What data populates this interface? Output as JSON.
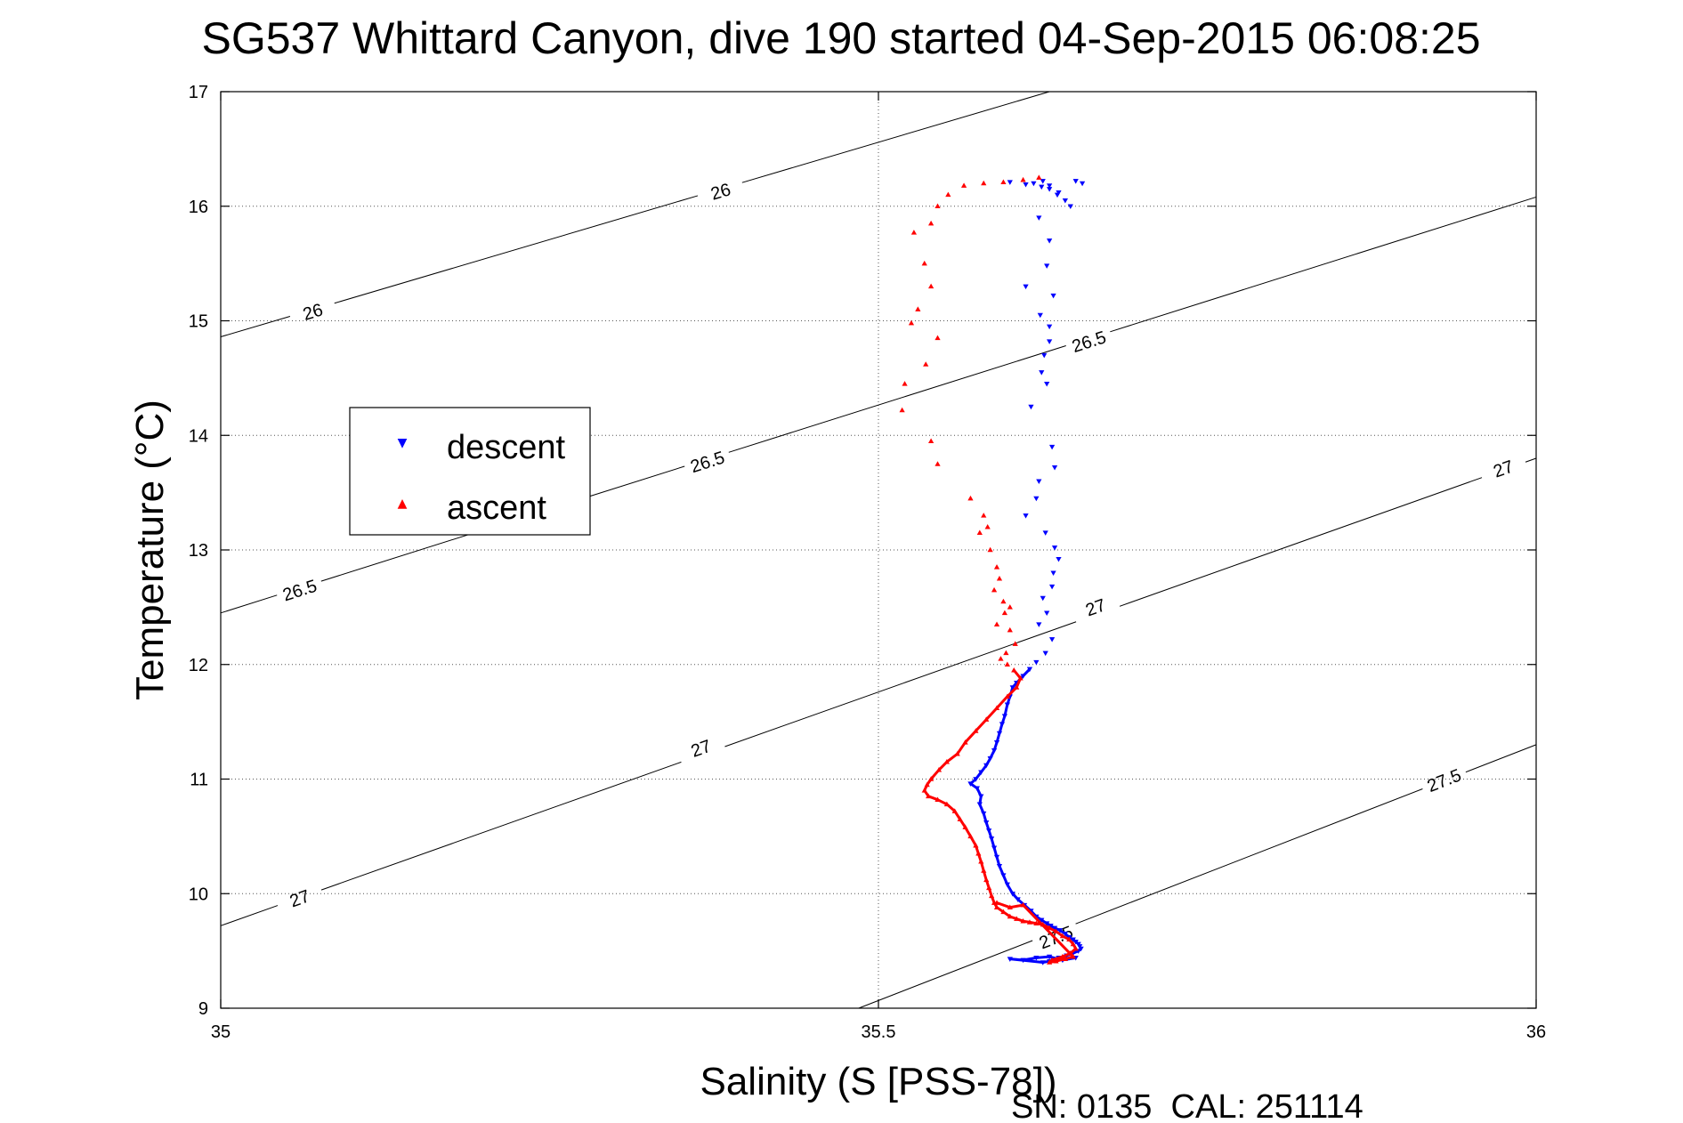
{
  "chart_data": {
    "type": "scatter",
    "title": "SG537 Whittard Canyon, dive 190 started 04-Sep-2015 06:08:25",
    "xlabel": "Salinity (S [PSS-78])",
    "ylabel": "Temperature (°C)",
    "xlim": [
      35,
      36
    ],
    "ylim": [
      9,
      17
    ],
    "x_ticks": [
      35,
      35.5,
      36
    ],
    "x_tick_labels": [
      "35",
      "35.5",
      "36"
    ],
    "y_ticks": [
      9,
      10,
      11,
      12,
      13,
      14,
      15,
      16,
      17
    ],
    "y_tick_labels": [
      "9",
      "10",
      "11",
      "12",
      "13",
      "14",
      "15",
      "16",
      "17"
    ],
    "grid": true,
    "legend": {
      "position": "center-left",
      "entries": [
        {
          "name": "descent",
          "color": "#0000ff",
          "marker": "down-triangle"
        },
        {
          "name": "ascent",
          "color": "#ff0000",
          "marker": "up-triangle"
        }
      ]
    },
    "contours": [
      {
        "level": 26,
        "points": [
          [
            35,
            14.86
          ],
          [
            35.63,
            17.0
          ]
        ],
        "labels": [
          {
            "text": "26",
            "x": 35.07,
            "y": 15.08
          },
          {
            "text": "26",
            "x": 35.38,
            "y": 16.13
          }
        ]
      },
      {
        "level": 26.5,
        "points": [
          [
            35,
            12.45
          ],
          [
            36,
            16.08
          ]
        ],
        "labels": [
          {
            "text": "26.5",
            "x": 35.06,
            "y": 12.65
          },
          {
            "text": "26.5",
            "x": 35.37,
            "y": 13.77
          },
          {
            "text": "26.5",
            "x": 35.66,
            "y": 14.82
          }
        ]
      },
      {
        "level": 27,
        "points": [
          [
            35,
            9.72
          ],
          [
            36,
            13.8
          ]
        ],
        "labels": [
          {
            "text": "27",
            "x": 35.06,
            "y": 9.96
          },
          {
            "text": "27",
            "x": 35.365,
            "y": 11.27
          },
          {
            "text": "27",
            "x": 35.665,
            "y": 12.5
          },
          {
            "text": "27",
            "x": 35.975,
            "y": 13.71
          }
        ]
      },
      {
        "level": 27.5,
        "points": [
          [
            35.485,
            9.0
          ],
          [
            36,
            11.3
          ]
        ],
        "labels": [
          {
            "text": "27.5",
            "x": 35.635,
            "y": 9.62
          },
          {
            "text": "27.5",
            "x": 35.93,
            "y": 10.99
          }
        ]
      }
    ],
    "series": [
      {
        "name": "descent",
        "color": "#0000ff",
        "x": [
          35.625,
          35.63,
          35.637,
          35.622,
          35.63,
          35.628,
          35.612,
          35.633,
          35.623,
          35.63,
          35.63,
          35.626,
          35.624,
          35.628,
          35.616,
          35.632,
          35.634,
          35.622,
          35.62,
          35.612,
          35.627,
          35.634,
          35.637,
          35.633,
          35.632,
          35.625,
          35.628,
          35.622,
          35.632,
          35.627,
          35.62,
          35.615,
          35.61,
          35.605,
          35.602,
          35.6,
          35.598,
          35.596,
          35.594,
          35.592,
          35.59,
          35.588,
          35.585,
          35.582,
          35.578,
          35.574,
          35.57,
          35.575,
          35.578,
          35.577,
          35.58,
          35.582,
          35.584,
          35.586,
          35.588,
          35.59,
          35.592,
          35.595,
          35.598,
          35.602,
          35.606,
          35.611,
          35.616,
          35.62,
          35.624,
          35.628,
          35.631,
          35.634,
          35.638,
          35.642,
          35.645,
          35.648,
          35.65,
          35.652,
          35.653,
          35.654,
          35.652,
          35.648,
          35.643,
          35.637,
          35.633,
          35.63,
          35.625,
          35.6,
          35.612,
          35.618,
          35.624,
          35.63,
          35.636,
          35.642,
          35.646,
          35.65,
          35.655,
          35.6,
          35.61,
          35.62,
          35.63,
          35.64,
          35.65
        ],
        "y": [
          16.22,
          16.18,
          16.12,
          15.9,
          15.7,
          15.48,
          15.3,
          15.22,
          15.05,
          14.95,
          14.82,
          14.7,
          14.55,
          14.45,
          14.25,
          13.9,
          13.72,
          13.6,
          13.45,
          13.3,
          13.15,
          13.02,
          12.92,
          12.8,
          12.68,
          12.58,
          12.45,
          12.35,
          12.22,
          12.1,
          12.02,
          11.96,
          11.9,
          11.84,
          11.8,
          11.72,
          11.65,
          11.55,
          11.48,
          11.4,
          11.32,
          11.25,
          11.18,
          11.12,
          11.06,
          11.0,
          10.96,
          10.92,
          10.85,
          10.78,
          10.7,
          10.62,
          10.55,
          10.48,
          10.4,
          10.32,
          10.24,
          10.16,
          10.08,
          10.0,
          9.95,
          9.9,
          9.85,
          9.8,
          9.77,
          9.74,
          9.72,
          9.7,
          9.68,
          9.65,
          9.62,
          9.6,
          9.58,
          9.56,
          9.54,
          9.52,
          9.5,
          9.48,
          9.46,
          9.44,
          9.42,
          9.41,
          9.4,
          16.21,
          16.19,
          16.2,
          16.17,
          16.15,
          16.1,
          16.05,
          16.0,
          16.22,
          16.2,
          9.43,
          9.42,
          9.44,
          9.45,
          9.42,
          9.44
        ],
        "note_visible": false
      },
      {
        "name": "ascent",
        "color": "#ff0000",
        "x": [
          35.622,
          35.61,
          35.595,
          35.58,
          35.565,
          35.553,
          35.545,
          35.54,
          35.527,
          35.535,
          35.54,
          35.53,
          35.525,
          35.545,
          35.536,
          35.52,
          35.518,
          35.54,
          35.545,
          35.57,
          35.58,
          35.583,
          35.577,
          35.585,
          35.59,
          35.592,
          35.588,
          35.595,
          35.6,
          35.596,
          35.59,
          35.6,
          35.604,
          35.597,
          35.593,
          35.598,
          35.603,
          35.608,
          35.605,
          35.598,
          35.59,
          35.582,
          35.574,
          35.566,
          35.56,
          35.552,
          35.546,
          35.54,
          35.537,
          35.535,
          35.538,
          35.545,
          35.552,
          35.558,
          35.562,
          35.566,
          35.57,
          35.574,
          35.576,
          35.578,
          35.58,
          35.582,
          35.584,
          35.586,
          35.588,
          35.59,
          35.595,
          35.6,
          35.605,
          35.61,
          35.615,
          35.62,
          35.625,
          35.63,
          35.635,
          35.64,
          35.645,
          35.648,
          35.65,
          35.646,
          35.64,
          35.632,
          35.63,
          35.635,
          35.642,
          35.648,
          35.61,
          35.6,
          35.59
        ],
        "y": [
          16.25,
          16.23,
          16.21,
          16.2,
          16.18,
          16.1,
          16.0,
          15.85,
          15.77,
          15.5,
          15.3,
          15.1,
          14.98,
          14.85,
          14.62,
          14.45,
          14.22,
          13.95,
          13.75,
          13.45,
          13.3,
          13.2,
          13.15,
          13.0,
          12.85,
          12.75,
          12.65,
          12.55,
          12.5,
          12.45,
          12.35,
          12.3,
          12.18,
          12.1,
          12.05,
          12.0,
          11.95,
          11.88,
          11.8,
          11.72,
          11.62,
          11.52,
          11.42,
          11.32,
          11.22,
          11.15,
          11.08,
          11.0,
          10.95,
          10.9,
          10.85,
          10.82,
          10.78,
          10.72,
          10.65,
          10.58,
          10.5,
          10.42,
          10.35,
          10.28,
          10.2,
          10.12,
          10.05,
          9.98,
          9.92,
          9.88,
          9.84,
          9.8,
          9.78,
          9.76,
          9.75,
          9.74,
          9.73,
          9.7,
          9.67,
          9.63,
          9.6,
          9.56,
          9.52,
          9.48,
          9.45,
          9.42,
          9.4,
          9.41,
          9.43,
          9.45,
          9.9,
          9.88,
          9.92
        ]
      }
    ]
  },
  "footer": {
    "serial": "SN: 0135  CAL: 251114"
  }
}
